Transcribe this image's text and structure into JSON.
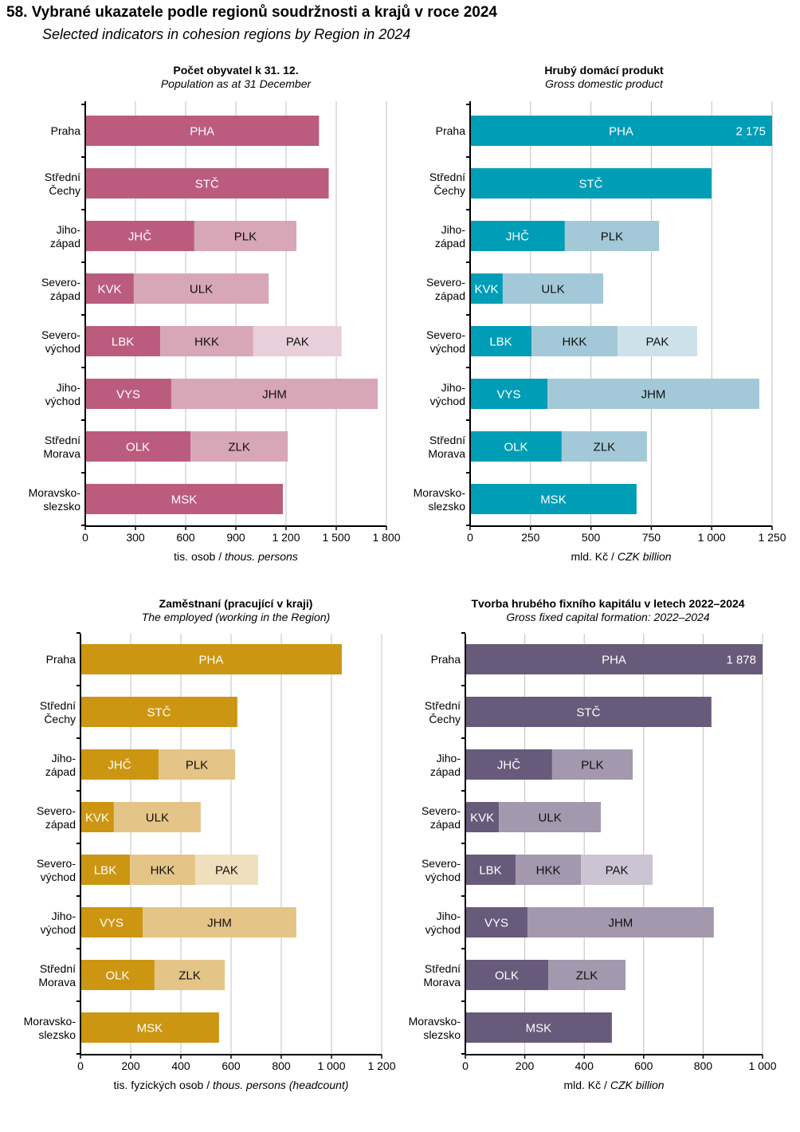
{
  "header": {
    "title": "58. Vybrané ukazatele podle regionů soudržnosti a krajů v roce 2024",
    "subtitle": "Selected indicators in cohesion regions by Region in 2024"
  },
  "chart_data": [
    {
      "type": "bar",
      "orientation": "horizontal",
      "stacked": true,
      "title": "Počet obyvatel k 31. 12.",
      "subtitle": "Population as at 31 December",
      "xlabel": "tis. osob",
      "xlabel_en": "thous. persons",
      "xlim": [
        0,
        1800
      ],
      "ticks": [
        0,
        300,
        600,
        900,
        1200,
        1500,
        1800
      ],
      "tick_labels": [
        "0",
        "300",
        "600",
        "900",
        "1 200",
        "1 500",
        "1 800"
      ],
      "grid": true,
      "colors": [
        "#BB5C7E",
        "#D7A6B7",
        "#E8CFD9"
      ],
      "categories": [
        {
          "label": [
            "Praha"
          ],
          "segments": [
            {
              "name": "PHA",
              "value": 1397
            }
          ]
        },
        {
          "label": [
            "Střední",
            "Čechy"
          ],
          "segments": [
            {
              "name": "STČ",
              "value": 1455
            }
          ]
        },
        {
          "label": [
            "Jiho-",
            "západ"
          ],
          "segments": [
            {
              "name": "JHČ",
              "value": 652
            },
            {
              "name": "PLK",
              "value": 610
            }
          ]
        },
        {
          "label": [
            "Severo-",
            "západ"
          ],
          "segments": [
            {
              "name": "KVK",
              "value": 290
            },
            {
              "name": "ULK",
              "value": 806
            }
          ]
        },
        {
          "label": [
            "Severo-",
            "východ"
          ],
          "segments": [
            {
              "name": "LBK",
              "value": 448
            },
            {
              "name": "HKK",
              "value": 556
            },
            {
              "name": "PAK",
              "value": 528
            }
          ]
        },
        {
          "label": [
            "Jiho-",
            "východ"
          ],
          "segments": [
            {
              "name": "VYS",
              "value": 514
            },
            {
              "name": "JHM",
              "value": 1234
            }
          ]
        },
        {
          "label": [
            "Střední",
            "Morava"
          ],
          "segments": [
            {
              "name": "OLK",
              "value": 629
            },
            {
              "name": "ZLK",
              "value": 581
            }
          ]
        },
        {
          "label": [
            "Moravsko-",
            "slezsko"
          ],
          "segments": [
            {
              "name": "MSK",
              "value": 1181
            }
          ]
        }
      ]
    },
    {
      "type": "bar",
      "orientation": "horizontal",
      "stacked": true,
      "title": "Hrubý domácí produkt",
      "subtitle": "Gross domestic product",
      "xlabel": "mld. Kč",
      "xlabel_en": "CZK billion",
      "xlim": [
        0,
        1250
      ],
      "ticks": [
        0,
        250,
        500,
        750,
        1000,
        1250
      ],
      "tick_labels": [
        "0",
        "250",
        "500",
        "750",
        "1 000",
        "1 250"
      ],
      "grid": true,
      "colors": [
        "#009DB7",
        "#A3C9D8",
        "#CDE1EA"
      ],
      "categories": [
        {
          "label": [
            "Praha"
          ],
          "segments": [
            {
              "name": "PHA",
              "value": 2175
            }
          ],
          "value_label": "2 175"
        },
        {
          "label": [
            "Střední",
            "Čechy"
          ],
          "segments": [
            {
              "name": "STČ",
              "value": 999
            }
          ]
        },
        {
          "label": [
            "Jiho-",
            "západ"
          ],
          "segments": [
            {
              "name": "JHČ",
              "value": 392
            },
            {
              "name": "PLK",
              "value": 390
            }
          ]
        },
        {
          "label": [
            "Severo-",
            "západ"
          ],
          "segments": [
            {
              "name": "KVK",
              "value": 135
            },
            {
              "name": "ULK",
              "value": 416
            }
          ]
        },
        {
          "label": [
            "Severo-",
            "východ"
          ],
          "segments": [
            {
              "name": "LBK",
              "value": 254
            },
            {
              "name": "HKK",
              "value": 356
            },
            {
              "name": "PAK",
              "value": 330
            }
          ]
        },
        {
          "label": [
            "Jiho-",
            "východ"
          ],
          "segments": [
            {
              "name": "VYS",
              "value": 320
            },
            {
              "name": "JHM",
              "value": 877
            }
          ]
        },
        {
          "label": [
            "Střední",
            "Morava"
          ],
          "segments": [
            {
              "name": "OLK",
              "value": 379
            },
            {
              "name": "ZLK",
              "value": 353
            }
          ]
        },
        {
          "label": [
            "Moravsko-",
            "slezsko"
          ],
          "segments": [
            {
              "name": "MSK",
              "value": 689
            }
          ]
        }
      ]
    },
    {
      "type": "bar",
      "orientation": "horizontal",
      "stacked": true,
      "title": "Zaměstnaní  (pracující  v kraji)",
      "subtitle": "The employed (working in the Region)",
      "xlabel": "tis. fyzických  osob",
      "xlabel_en": "thous. persons (headcount)",
      "xlim": [
        0,
        1200
      ],
      "ticks": [
        0,
        200,
        400,
        600,
        800,
        1000,
        1200
      ],
      "tick_labels": [
        "0",
        "200",
        "400",
        "600",
        "800",
        "1 000",
        "1 200"
      ],
      "grid": true,
      "colors": [
        "#CC9612",
        "#E4C487",
        "#F0DFBC"
      ],
      "categories": [
        {
          "label": [
            "Praha"
          ],
          "segments": [
            {
              "name": "PHA",
              "value": 1041
            }
          ]
        },
        {
          "label": [
            "Střední",
            "Čechy"
          ],
          "segments": [
            {
              "name": "STČ",
              "value": 625
            }
          ]
        },
        {
          "label": [
            "Jiho-",
            "západ"
          ],
          "segments": [
            {
              "name": "JHČ",
              "value": 311
            },
            {
              "name": "PLK",
              "value": 305
            }
          ]
        },
        {
          "label": [
            "Severo-",
            "západ"
          ],
          "segments": [
            {
              "name": "KVK",
              "value": 133
            },
            {
              "name": "ULK",
              "value": 346
            }
          ]
        },
        {
          "label": [
            "Severo-",
            "východ"
          ],
          "segments": [
            {
              "name": "LBK",
              "value": 197
            },
            {
              "name": "HKK",
              "value": 260
            },
            {
              "name": "PAK",
              "value": 251
            }
          ]
        },
        {
          "label": [
            "Jiho-",
            "východ"
          ],
          "segments": [
            {
              "name": "VYS",
              "value": 248
            },
            {
              "name": "JHM",
              "value": 612
            }
          ]
        },
        {
          "label": [
            "Střední",
            "Morava"
          ],
          "segments": [
            {
              "name": "OLK",
              "value": 295
            },
            {
              "name": "ZLK",
              "value": 280
            }
          ]
        },
        {
          "label": [
            "Moravsko-",
            "slezsko"
          ],
          "segments": [
            {
              "name": "MSK",
              "value": 552
            }
          ]
        }
      ]
    },
    {
      "type": "bar",
      "orientation": "horizontal",
      "stacked": true,
      "title": "Tvorba hrubého fixního  kapitálu  v letech  2022–2024",
      "subtitle": "Gross fixed capital formation: 2022–2024",
      "xlabel": "mld. Kč",
      "xlabel_en": "CZK billion",
      "xlim": [
        0,
        1000
      ],
      "ticks": [
        0,
        200,
        400,
        600,
        800,
        1000
      ],
      "tick_labels": [
        "0",
        "200",
        "400",
        "600",
        "800",
        "1 000"
      ],
      "grid": true,
      "colors": [
        "#685A7B",
        "#A398AE",
        "#CBC4D3"
      ],
      "categories": [
        {
          "label": [
            "Praha"
          ],
          "segments": [
            {
              "name": "PHA",
              "value": 1878
            }
          ],
          "value_label": "1 878"
        },
        {
          "label": [
            "Střední",
            "Čechy"
          ],
          "segments": [
            {
              "name": "STČ",
              "value": 828
            }
          ]
        },
        {
          "label": [
            "Jiho-",
            "západ"
          ],
          "segments": [
            {
              "name": "JHČ",
              "value": 292
            },
            {
              "name": "PLK",
              "value": 271
            }
          ]
        },
        {
          "label": [
            "Severo-",
            "západ"
          ],
          "segments": [
            {
              "name": "KVK",
              "value": 113
            },
            {
              "name": "ULK",
              "value": 343
            }
          ]
        },
        {
          "label": [
            "Severo-",
            "východ"
          ],
          "segments": [
            {
              "name": "LBK",
              "value": 169
            },
            {
              "name": "HKK",
              "value": 220
            },
            {
              "name": "PAK",
              "value": 241
            }
          ]
        },
        {
          "label": [
            "Jiho-",
            "východ"
          ],
          "segments": [
            {
              "name": "VYS",
              "value": 209
            },
            {
              "name": "JHM",
              "value": 627
            }
          ]
        },
        {
          "label": [
            "Střední",
            "Morava"
          ],
          "segments": [
            {
              "name": "OLK",
              "value": 279
            },
            {
              "name": "ZLK",
              "value": 260
            }
          ]
        },
        {
          "label": [
            "Moravsko-",
            "slezsko"
          ],
          "segments": [
            {
              "name": "MSK",
              "value": 493
            }
          ]
        }
      ]
    }
  ]
}
